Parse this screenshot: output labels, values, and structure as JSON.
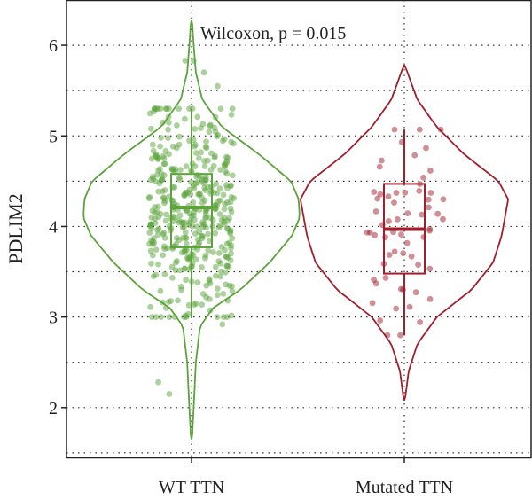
{
  "chart_data": {
    "type": "violin",
    "ylabel": "PDLIM2",
    "xlabel": "",
    "ylim": [
      1.45,
      6.5
    ],
    "y_ticks": [
      2,
      3,
      4,
      5,
      6
    ],
    "y_tick_labels": [
      "2",
      "3",
      "4",
      "5",
      "6"
    ],
    "grid": "dotted",
    "annotation": "Wilcoxon, p = 0.015",
    "categories": [
      "WT TTN",
      "Mutated TTN"
    ],
    "groups": [
      {
        "category": "WT TTN",
        "color": "#5ba33a",
        "point_count": 420,
        "range": [
          1.65,
          6.28
        ],
        "box": {
          "q1": 3.77,
          "median": 4.21,
          "q3": 4.58,
          "whisker_low": 3.0,
          "whisker_high": 5.3
        },
        "outliers": [
          2.15,
          2.28,
          2.92,
          5.55,
          5.7,
          5.83,
          5.83
        ]
      },
      {
        "category": "Mutated TTN",
        "color": "#a11e2c",
        "point_count": 62,
        "range": [
          2.08,
          5.78
        ],
        "box": {
          "q1": 3.48,
          "median": 3.97,
          "q3": 4.47,
          "whisker_low": 2.8,
          "whisker_high": 5.07
        },
        "outliers": []
      }
    ]
  }
}
